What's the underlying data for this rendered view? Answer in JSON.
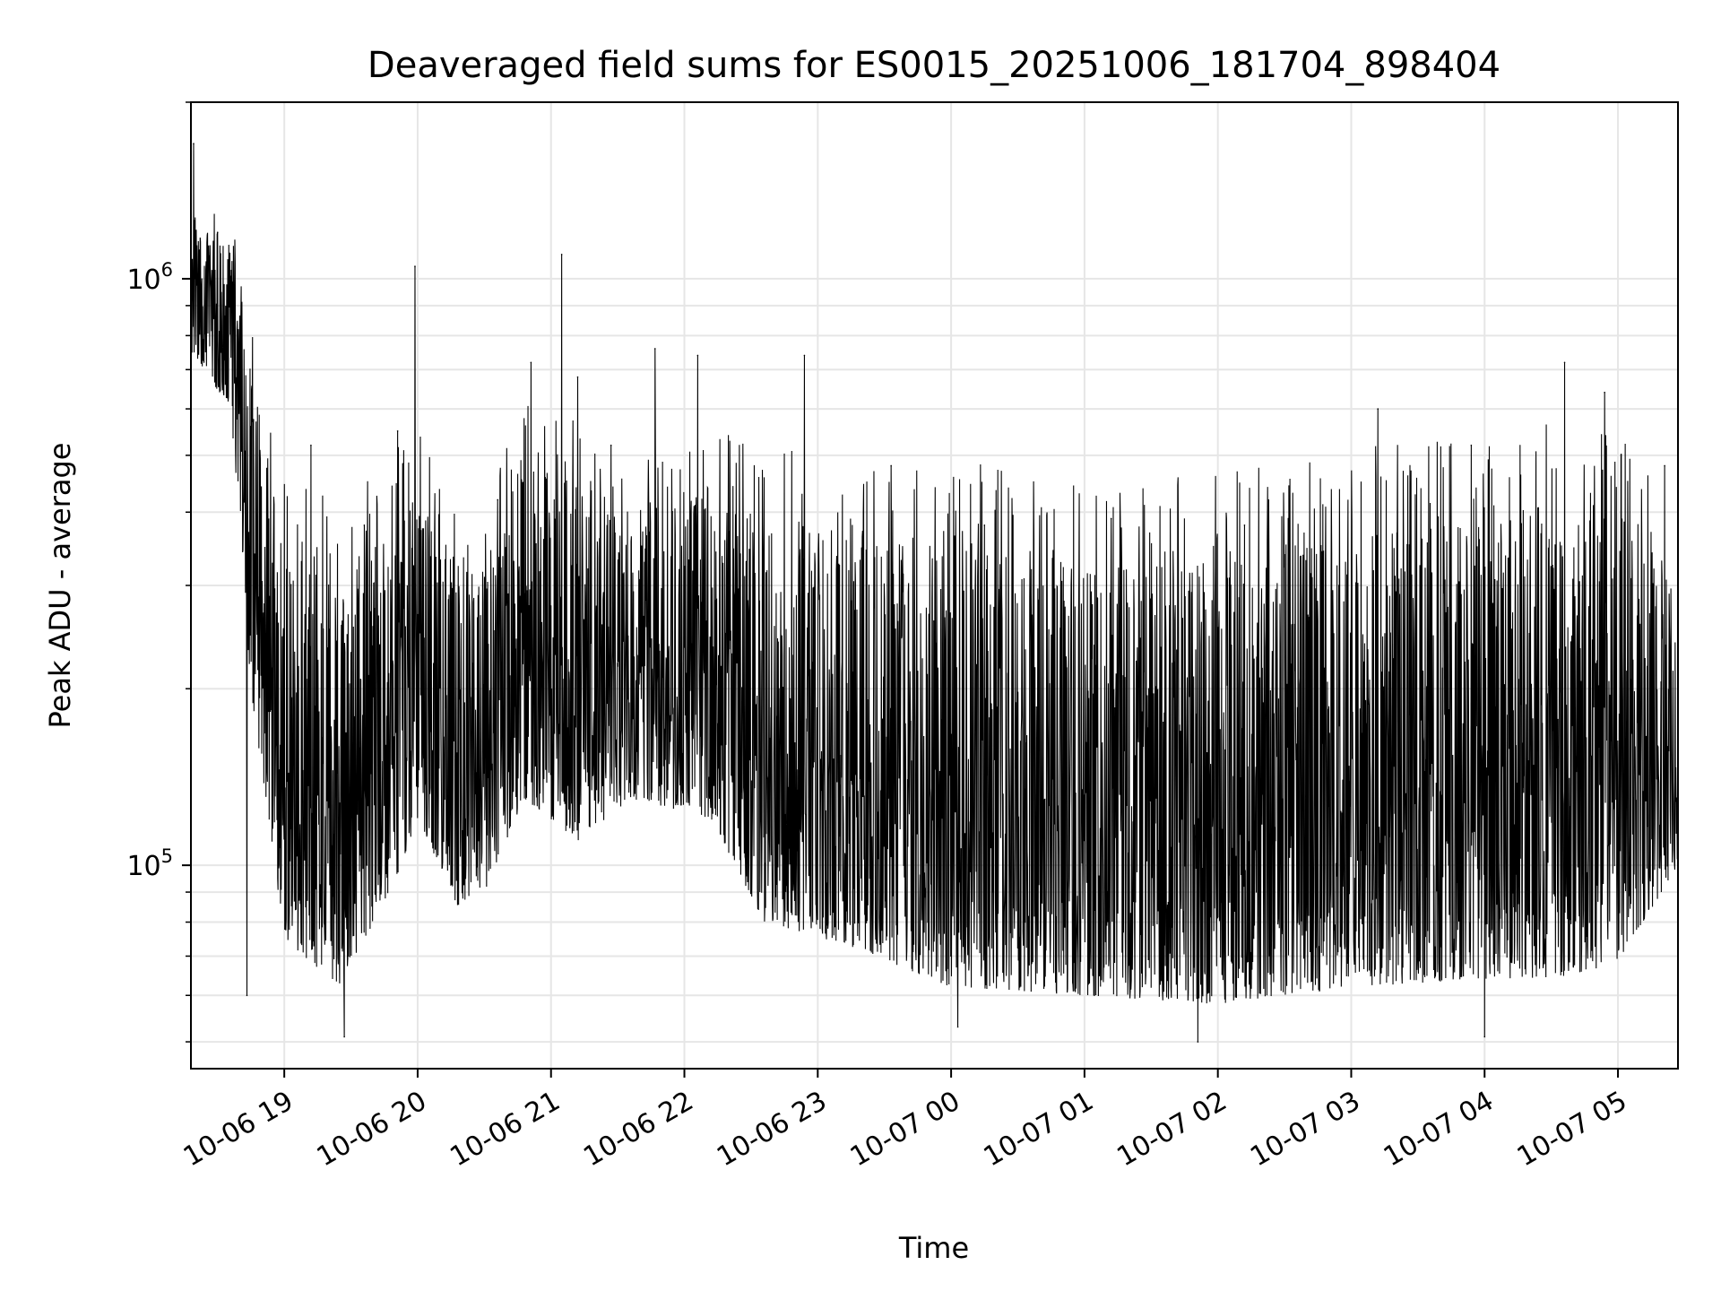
{
  "chart_data": {
    "type": "line",
    "title": "Deaveraged field sums for ES0015_20251006_181704_898404",
    "xlabel": "Time",
    "ylabel": "Peak ADU - average",
    "yscale": "log",
    "ylim": [
      45000,
      2000000
    ],
    "xlim_hours": [
      18.3,
      29.45
    ],
    "x_ticks": [
      {
        "hour": 19,
        "label": "10-06 19"
      },
      {
        "hour": 20,
        "label": "10-06 20"
      },
      {
        "hour": 21,
        "label": "10-06 21"
      },
      {
        "hour": 22,
        "label": "10-06 22"
      },
      {
        "hour": 23,
        "label": "10-06 23"
      },
      {
        "hour": 24,
        "label": "10-07 00"
      },
      {
        "hour": 25,
        "label": "10-07 01"
      },
      {
        "hour": 26,
        "label": "10-07 02"
      },
      {
        "hour": 27,
        "label": "10-07 03"
      },
      {
        "hour": 28,
        "label": "10-07 04"
      },
      {
        "hour": 29,
        "label": "10-07 05"
      }
    ],
    "y_major_ticks": [
      {
        "value": 100000,
        "base": "10",
        "exp": "5"
      },
      {
        "value": 1000000,
        "base": "10",
        "exp": "6"
      }
    ],
    "grid": true,
    "line_color": "#000000",
    "series": [
      {
        "name": "field sums",
        "envelope": [
          {
            "hour": 18.3,
            "low": 750000,
            "high": 1300000
          },
          {
            "hour": 18.6,
            "low": 600000,
            "high": 1100000
          },
          {
            "hour": 18.75,
            "low": 200000,
            "high": 700000
          },
          {
            "hour": 19.0,
            "low": 75000,
            "high": 350000
          },
          {
            "hour": 19.4,
            "low": 62000,
            "high": 300000
          },
          {
            "hour": 19.8,
            "low": 90000,
            "high": 380000
          },
          {
            "hour": 20.0,
            "low": 120000,
            "high": 430000
          },
          {
            "hour": 20.3,
            "low": 85000,
            "high": 300000
          },
          {
            "hour": 20.5,
            "low": 90000,
            "high": 320000
          },
          {
            "hour": 20.8,
            "low": 130000,
            "high": 480000
          },
          {
            "hour": 21.2,
            "low": 110000,
            "high": 450000
          },
          {
            "hour": 21.6,
            "low": 130000,
            "high": 400000
          },
          {
            "hour": 22.2,
            "low": 120000,
            "high": 430000
          },
          {
            "hour": 22.6,
            "low": 80000,
            "high": 380000
          },
          {
            "hour": 23.3,
            "low": 72000,
            "high": 360000
          },
          {
            "hour": 24.0,
            "low": 62000,
            "high": 350000
          },
          {
            "hour": 25.0,
            "low": 60000,
            "high": 320000
          },
          {
            "hour": 26.0,
            "low": 58000,
            "high": 330000
          },
          {
            "hour": 27.0,
            "low": 62000,
            "high": 360000
          },
          {
            "hour": 28.0,
            "low": 64000,
            "high": 390000
          },
          {
            "hour": 28.5,
            "low": 64000,
            "high": 400000
          },
          {
            "hour": 29.0,
            "low": 68000,
            "high": 410000
          },
          {
            "hour": 29.45,
            "low": 100000,
            "high": 320000
          }
        ],
        "spikes": [
          {
            "hour": 18.32,
            "value": 1700000
          },
          {
            "hour": 18.5,
            "value": 1200000
          },
          {
            "hour": 19.2,
            "value": 520000
          },
          {
            "hour": 19.6,
            "value": 380000
          },
          {
            "hour": 19.85,
            "value": 550000
          },
          {
            "hour": 19.98,
            "value": 1050000
          },
          {
            "hour": 20.6,
            "value": 420000
          },
          {
            "hour": 20.85,
            "value": 720000
          },
          {
            "hour": 21.08,
            "value": 1100000
          },
          {
            "hour": 21.2,
            "value": 680000
          },
          {
            "hour": 21.45,
            "value": 520000
          },
          {
            "hour": 21.78,
            "value": 760000
          },
          {
            "hour": 22.1,
            "value": 740000
          },
          {
            "hour": 22.9,
            "value": 740000
          },
          {
            "hour": 23.55,
            "value": 480000
          },
          {
            "hour": 24.25,
            "value": 380000
          },
          {
            "hour": 25.2,
            "value": 390000
          },
          {
            "hour": 26.2,
            "value": 380000
          },
          {
            "hour": 27.2,
            "value": 600000
          },
          {
            "hour": 27.9,
            "value": 520000
          },
          {
            "hour": 28.6,
            "value": 720000
          },
          {
            "hour": 28.9,
            "value": 640000
          },
          {
            "hour": 29.35,
            "value": 480000
          }
        ],
        "dips": [
          {
            "hour": 18.72,
            "value": 60000
          },
          {
            "hour": 19.45,
            "value": 51000
          },
          {
            "hour": 24.05,
            "value": 53000
          },
          {
            "hour": 25.85,
            "value": 50000
          },
          {
            "hour": 28.0,
            "value": 51000
          }
        ]
      }
    ]
  }
}
